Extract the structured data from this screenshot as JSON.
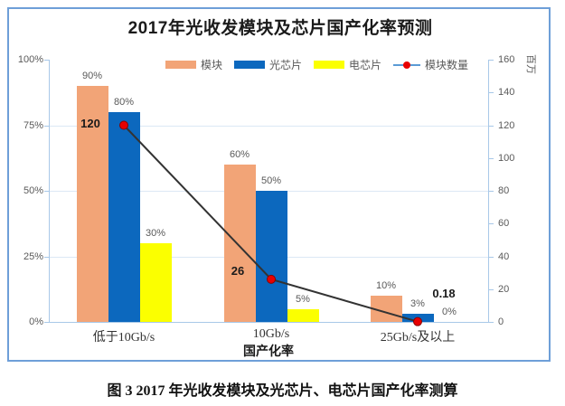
{
  "figure": {
    "caption": "图 3 2017 年光收发模块及光芯片、电芯片国产化率测算"
  },
  "chart_data": {
    "type": "bar",
    "subtype": "grouped-bar-with-line-combo",
    "title": "2017年光收发模块及芯片国产化率预测",
    "categories": [
      "低于10Gb/s",
      "10Gb/s",
      "25Gb/s及以上"
    ],
    "series": [
      {
        "name": "模块",
        "type": "bar",
        "axis": "left",
        "unit": "%",
        "values": [
          90,
          60,
          10
        ],
        "labels": [
          "90%",
          "60%",
          "10%"
        ],
        "color": "#F2A477"
      },
      {
        "name": "光芯片",
        "type": "bar",
        "axis": "left",
        "unit": "%",
        "values": [
          80,
          50,
          3
        ],
        "labels": [
          "80%",
          "50%",
          "3%"
        ],
        "color": "#0C68BE"
      },
      {
        "name": "电芯片",
        "type": "bar",
        "axis": "left",
        "unit": "%",
        "values": [
          30,
          5,
          0
        ],
        "labels": [
          "30%",
          "5%",
          "0%"
        ],
        "color": "#FBFF00"
      },
      {
        "name": "模块数量",
        "type": "line",
        "axis": "right",
        "unit": "百万",
        "values": [
          120,
          26,
          0.18
        ],
        "labels": [
          "120",
          "26",
          "0.18"
        ],
        "color": "#333333",
        "marker_color": "#E80000",
        "marker_edge_color": "#8B0000",
        "legend_line_color": "#5B9BD5"
      }
    ],
    "left_axis": {
      "range": [
        0,
        100
      ],
      "tick_values": [
        0,
        25,
        50,
        75,
        100
      ],
      "ticks": [
        "0%",
        "25%",
        "50%",
        "75%",
        "100%"
      ]
    },
    "right_axis": {
      "range": [
        0,
        160
      ],
      "tick_values": [
        0,
        20,
        40,
        60,
        80,
        100,
        120,
        140,
        160
      ],
      "ticks": [
        "0",
        "20",
        "40",
        "60",
        "80",
        "100",
        "120",
        "140",
        "160"
      ],
      "unit_label": "百万"
    },
    "xlabel": "国产化率",
    "legend_position": "top",
    "grid": true,
    "gridline_values_pct": [
      25,
      50,
      75
    ]
  },
  "colors": {
    "frame_border": "#6E9FD8",
    "gridline": "#DCE8F5",
    "axis": "#A8C8E8",
    "tick_text": "#595959",
    "title_text": "#1a1a1a"
  }
}
